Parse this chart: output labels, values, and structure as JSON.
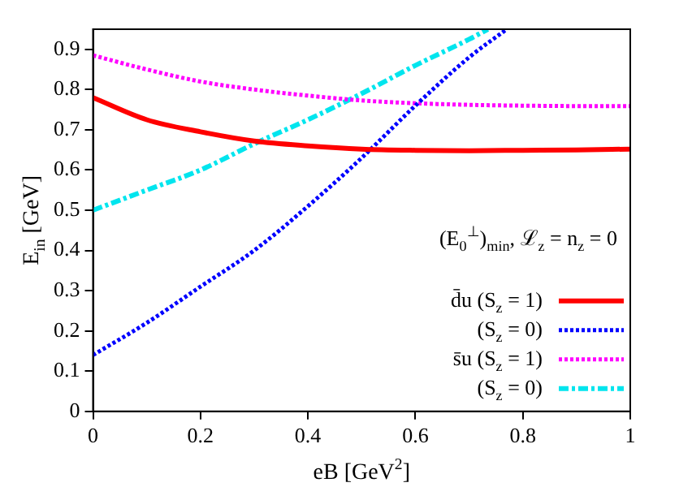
{
  "chart_data": {
    "type": "line",
    "xlabel": "eB [GeV$^{2}$]",
    "ylabel": "E$_{in}$ [GeV]",
    "xlim": [
      0,
      1
    ],
    "xticks": [
      0,
      0.2,
      0.4,
      0.6,
      0.8,
      1
    ],
    "ylim": [
      0,
      0.95
    ],
    "yticks": [
      0,
      0.1,
      0.2,
      0.3,
      0.4,
      0.5,
      0.6,
      0.7,
      0.8,
      0.9
    ],
    "grid": false,
    "legend": "bottom right",
    "marker": "none",
    "annotations": [
      "(E$_{0}$$^{⊥}$)$_{min}$, ℒ$_{z}$ = n$_{z}$ = 0"
    ],
    "series": [
      {
        "name": "d̄u (S$_{z}$ = 1)",
        "color": "#ff0000",
        "line_style": "solid",
        "x": [
          0,
          0.1,
          0.2,
          0.3,
          0.4,
          0.5,
          0.6,
          0.7,
          0.8,
          0.9,
          1
        ],
        "values": [
          0.78,
          0.725,
          0.695,
          0.672,
          0.66,
          0.652,
          0.649,
          0.648,
          0.649,
          0.65,
          0.652
        ]
      },
      {
        "name": "(S$_{z}$ = 0)",
        "color": "#0000ff",
        "line_style": "dotted",
        "x": [
          0,
          0.1,
          0.2,
          0.3,
          0.4,
          0.5,
          0.6,
          0.7,
          0.77
        ],
        "values": [
          0.14,
          0.22,
          0.31,
          0.4,
          0.51,
          0.63,
          0.76,
          0.88,
          0.95
        ]
      },
      {
        "name": "s̄u (S$_{z}$ = 1)",
        "color": "#ff00ff",
        "line_style": "dotted",
        "x": [
          0,
          0.1,
          0.2,
          0.3,
          0.4,
          0.5,
          0.6,
          0.7,
          0.8,
          0.9,
          1
        ],
        "values": [
          0.885,
          0.85,
          0.82,
          0.8,
          0.785,
          0.773,
          0.766,
          0.762,
          0.76,
          0.759,
          0.759
        ]
      },
      {
        "name": "(S$_{z}$ = 0)",
        "color": "#00e5ee",
        "line_style": "dashed",
        "x": [
          0,
          0.1,
          0.2,
          0.3,
          0.4,
          0.5,
          0.6,
          0.7,
          0.735
        ],
        "values": [
          0.5,
          0.55,
          0.6,
          0.665,
          0.725,
          0.79,
          0.86,
          0.925,
          0.95
        ]
      }
    ]
  }
}
